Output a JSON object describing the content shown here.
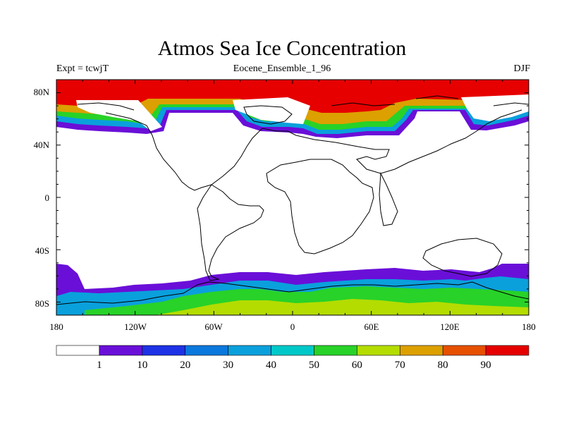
{
  "title": "Atmos Sea Ice Concentration",
  "left_string": "Expt = tcwjT",
  "center_string": "Eocene_Ensemble_1_96",
  "right_string": "DJF",
  "lat_labels": [
    "80N",
    "40N",
    "0",
    "40S",
    "80S"
  ],
  "lon_labels": [
    "180",
    "120W",
    "60W",
    "0",
    "60E",
    "120E",
    "180"
  ],
  "colorbar": {
    "labels": [
      "1",
      "10",
      "20",
      "30",
      "40",
      "50",
      "60",
      "70",
      "80",
      "90"
    ],
    "colors": [
      "#ffffff",
      "#6a0fd8",
      "#1e32e6",
      "#0a78dc",
      "#0aa0dc",
      "#00c8c8",
      "#28d228",
      "#b4dc00",
      "#dca000",
      "#e65000",
      "#e60000"
    ]
  }
}
